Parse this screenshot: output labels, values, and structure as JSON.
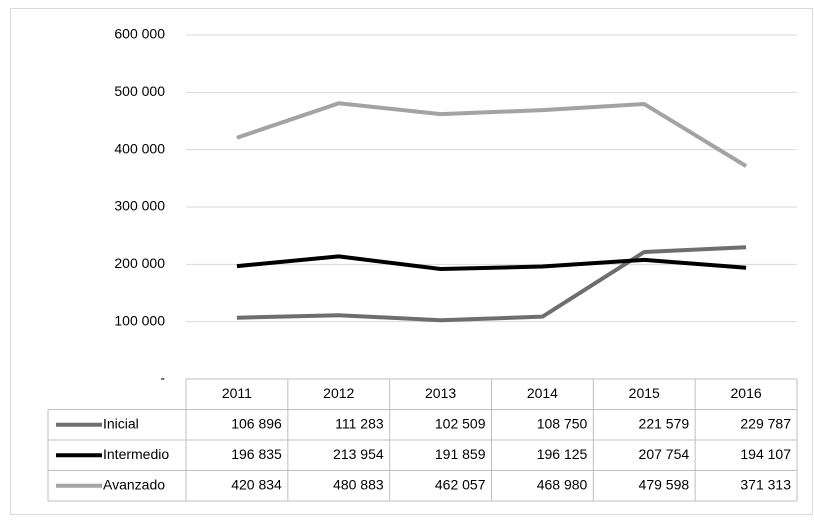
{
  "chart_data": {
    "type": "line",
    "categories": [
      "2011",
      "2012",
      "2013",
      "2014",
      "2015",
      "2016"
    ],
    "series": [
      {
        "name": "Inicial",
        "color": "#6e6e6e",
        "values": [
          106896,
          111283,
          102509,
          108750,
          221579,
          229787
        ],
        "value_labels": [
          "106 896",
          "111 283",
          "102 509",
          "108 750",
          "221 579",
          "229 787"
        ]
      },
      {
        "name": "Intermedio",
        "color": "#000000",
        "values": [
          196835,
          213954,
          191859,
          196125,
          207754,
          194107
        ],
        "value_labels": [
          "196 835",
          "213 954",
          "191 859",
          "196 125",
          "207 754",
          "194 107"
        ]
      },
      {
        "name": "Avanzado",
        "color": "#a3a3a3",
        "values": [
          420834,
          480883,
          462057,
          468980,
          479598,
          371313
        ],
        "value_labels": [
          "420 834",
          "480 883",
          "462 057",
          "468 980",
          "479 598",
          "371 313"
        ]
      }
    ],
    "ylim": [
      0,
      600000
    ],
    "yticks": [
      {
        "value": 0,
        "label": "-"
      },
      {
        "value": 100000,
        "label": "100 000"
      },
      {
        "value": 200000,
        "label": "200 000"
      },
      {
        "value": 300000,
        "label": "300 000"
      },
      {
        "value": 400000,
        "label": "400 000"
      },
      {
        "value": 500000,
        "label": "500 000"
      },
      {
        "value": 600000,
        "label": "600 000"
      }
    ],
    "grid": true,
    "data_table": true
  }
}
